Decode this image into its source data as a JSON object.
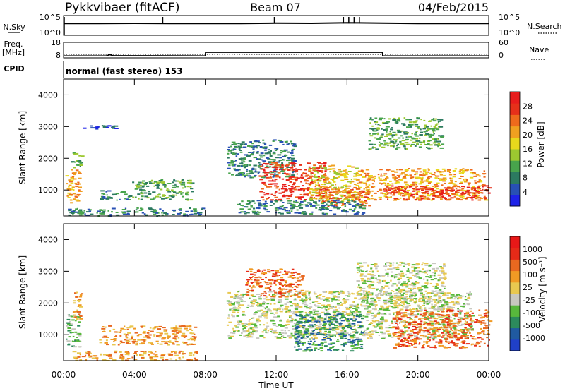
{
  "header": {
    "station": "Pykkvibaer (fitACF)",
    "beam": "Beam 07",
    "date": "04/Feb/2015"
  },
  "noise_panel": {
    "left_label": "N.Sky",
    "right_label": "N.Search",
    "left_ticks": [
      "10^5",
      "10^0"
    ],
    "right_ticks": [
      "10^5",
      "10^0"
    ]
  },
  "freq_panel": {
    "left_label_1": "Freq.",
    "left_label_2": "[MHz]",
    "right_label": "Nave",
    "left_ticks": [
      "18",
      "8"
    ],
    "right_ticks": [
      "60",
      "0"
    ]
  },
  "cpid": {
    "label": "CPID",
    "text": "normal (fast stereo) 153"
  },
  "chart_data": [
    {
      "type": "line",
      "title": "",
      "ylabel": "N.Sky",
      "note": "noise level, log scale 10^0–10^5",
      "x": [
        0,
        2,
        4,
        6,
        8,
        10,
        12,
        14,
        16,
        18,
        20,
        22,
        24
      ],
      "series": [
        {
          "name": "N.Sky",
          "values": [
            1000,
            1000,
            1100,
            1000,
            1000,
            1000,
            1200,
            1100,
            1500,
            1200,
            1000,
            1000,
            1000
          ]
        }
      ],
      "spikes_x": [
        5.6,
        11.9,
        15.8,
        16.1,
        16.4,
        16.7
      ]
    },
    {
      "type": "line",
      "ylabel": "Freq. [MHz]",
      "x": [
        0,
        2.4,
        2.6,
        2.8,
        8.0,
        8.01,
        18.0,
        18.01,
        24
      ],
      "series": [
        {
          "name": "Freq.",
          "values": [
            9.3,
            9.3,
            10.0,
            9.5,
            9.3,
            11.6,
            11.6,
            9.3,
            9.3
          ]
        },
        {
          "name": "Nave",
          "values": [
            14,
            14,
            14,
            14,
            14,
            14,
            14,
            14,
            14
          ]
        }
      ]
    },
    {
      "type": "heatmap",
      "ylabel": "Slant Range [km]",
      "xlim": [
        0,
        24
      ],
      "ylim": [
        180,
        4500
      ],
      "yticks": [
        "1000",
        "2000",
        "3000",
        "4000"
      ],
      "colorbar_label": "Power [dB]",
      "colorbar_ticks": [
        "28",
        "24",
        "20",
        "16",
        "12",
        "8",
        "4"
      ],
      "colors": [
        "#1e22e8",
        "#2850b4",
        "#2c7a60",
        "#48a44c",
        "#9cc830",
        "#e8d81c",
        "#f0a020",
        "#ee6a1c",
        "#e6301a",
        "#e81c1c"
      ],
      "regions": [
        {
          "x": [
            0.1,
            0.9
          ],
          "y": [
            600,
            1700
          ],
          "level": 6
        },
        {
          "x": [
            0.4,
            1.0
          ],
          "y": [
            1700,
            2300
          ],
          "level": 3
        },
        {
          "x": [
            0.2,
            7.8
          ],
          "y": [
            200,
            450
          ],
          "level": 2
        },
        {
          "x": [
            2.0,
            3.8
          ],
          "y": [
            700,
            1000
          ],
          "level": 2
        },
        {
          "x": [
            3.8,
            7.2
          ],
          "y": [
            700,
            1350
          ],
          "level": 3
        },
        {
          "x": [
            1.0,
            2.9
          ],
          "y": [
            2950,
            3050
          ],
          "level": 1
        },
        {
          "x": [
            9.2,
            13.0
          ],
          "y": [
            1400,
            2600
          ],
          "level": 2
        },
        {
          "x": [
            11.0,
            14.8
          ],
          "y": [
            700,
            1900
          ],
          "level": 8
        },
        {
          "x": [
            13.8,
            16.5
          ],
          "y": [
            650,
            1800
          ],
          "level": 5
        },
        {
          "x": [
            14.5,
            17.2
          ],
          "y": [
            500,
            1100
          ],
          "level": 7
        },
        {
          "x": [
            16.5,
            23.8
          ],
          "y": [
            700,
            1700
          ],
          "level": 6
        },
        {
          "x": [
            18.0,
            24.0
          ],
          "y": [
            700,
            1150
          ],
          "level": 8
        },
        {
          "x": [
            17.2,
            21.4
          ],
          "y": [
            2300,
            3300
          ],
          "level": 3
        },
        {
          "x": [
            9.8,
            17.0
          ],
          "y": [
            250,
            700
          ],
          "level": 2
        }
      ]
    },
    {
      "type": "heatmap",
      "ylabel": "Slant Range [km]",
      "xlim": [
        0,
        24
      ],
      "ylim": [
        180,
        4500
      ],
      "yticks": [
        "1000",
        "2000",
        "3000",
        "4000"
      ],
      "xticks": [
        "00:00",
        "04:00",
        "08:00",
        "12:00",
        "16:00",
        "20:00",
        "00:00"
      ],
      "xlabel": "Time UT",
      "colorbar_label": "Velocity [m s⁻¹]",
      "colorbar_ticks": [
        "1000",
        "500",
        "100",
        "25",
        "-25",
        "-100",
        "-500",
        "-1000"
      ],
      "colors": [
        "#2040c8",
        "#205aa0",
        "#2c8a5c",
        "#58b83c",
        "#c8c8c0",
        "#e8c850",
        "#f09a24",
        "#e86820",
        "#e62a18",
        "#e81818"
      ],
      "regions": [
        {
          "x": [
            0.1,
            0.9
          ],
          "y": [
            600,
            1700
          ],
          "level": 3
        },
        {
          "x": [
            0.5,
            1.0
          ],
          "y": [
            1500,
            2400
          ],
          "level": 6
        },
        {
          "x": [
            2.0,
            7.4
          ],
          "y": [
            700,
            1300
          ],
          "level": 6
        },
        {
          "x": [
            9.2,
            23.0
          ],
          "y": [
            900,
            2400
          ],
          "level": 4
        },
        {
          "x": [
            16.5,
            21.5
          ],
          "y": [
            1800,
            3300
          ],
          "level": 4
        },
        {
          "x": [
            13.0,
            16.8
          ],
          "y": [
            500,
            1700
          ],
          "level": 2
        },
        {
          "x": [
            18.5,
            24.0
          ],
          "y": [
            600,
            1800
          ],
          "level": 7
        },
        {
          "x": [
            10.2,
            13.5
          ],
          "y": [
            2200,
            3100
          ],
          "level": 7
        },
        {
          "x": [
            0.5,
            7.5
          ],
          "y": [
            200,
            500
          ],
          "level": 6
        }
      ]
    }
  ]
}
